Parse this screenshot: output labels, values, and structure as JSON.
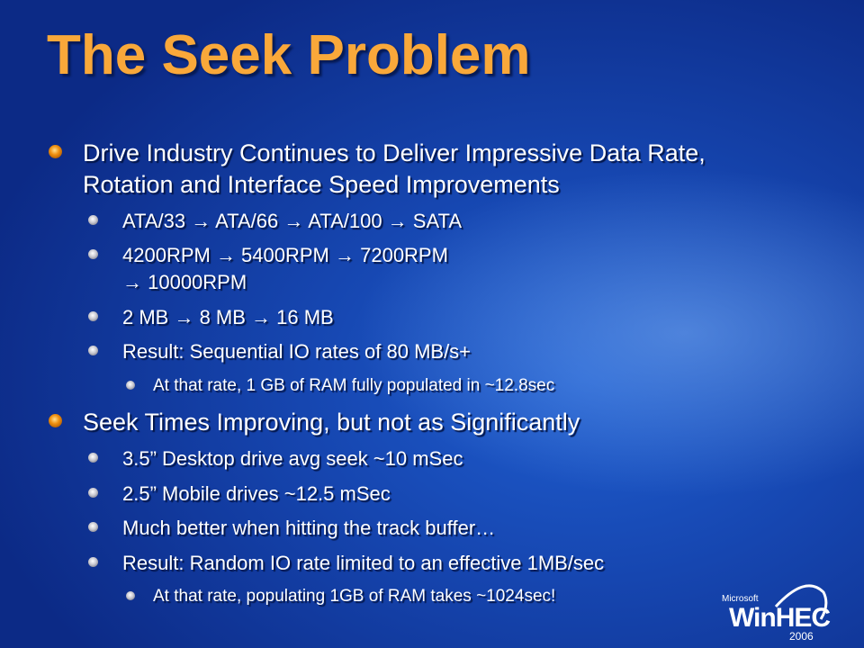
{
  "title": "The Seek Problem",
  "colors": {
    "title": "#f9a83a",
    "background": "#1646b0",
    "bullet_l1": "#f09010"
  },
  "bullets": [
    {
      "level": 1,
      "lines": [
        "Drive Industry Continues to Deliver Impressive Data Rate,",
        "Rotation and Interface Speed Improvements"
      ]
    },
    {
      "level": 2,
      "lines": [
        "ATA/33 → ATA/66 → ATA/100 → SATA"
      ]
    },
    {
      "level": 2,
      "lines": [
        "4200RPM → 5400RPM → 7200RPM",
        "→ 10000RPM"
      ]
    },
    {
      "level": 2,
      "lines": [
        "2 MB → 8 MB → 16 MB"
      ]
    },
    {
      "level": 2,
      "lines": [
        "Result:  Sequential IO rates of 80 MB/s+"
      ]
    },
    {
      "level": 3,
      "lines": [
        "At that rate, 1 GB of RAM fully populated in ~12.8sec"
      ]
    },
    {
      "level": 1,
      "lines": [
        "Seek Times Improving, but not as Significantly"
      ]
    },
    {
      "level": 2,
      "lines": [
        "3.5” Desktop drive avg seek ~10 mSec"
      ]
    },
    {
      "level": 2,
      "lines": [
        "2.5” Mobile drives ~12.5 mSec"
      ]
    },
    {
      "level": 2,
      "lines": [
        "Much better when hitting the track buffer…"
      ]
    },
    {
      "level": 2,
      "lines": [
        "Result:  Random IO rate limited to an effective 1MB/sec"
      ]
    },
    {
      "level": 3,
      "lines": [
        "At that rate, populating 1GB of RAM takes ~1024sec!"
      ]
    }
  ],
  "logo": {
    "company": "Microsoft",
    "name": "WinHEC",
    "year": "2006"
  }
}
